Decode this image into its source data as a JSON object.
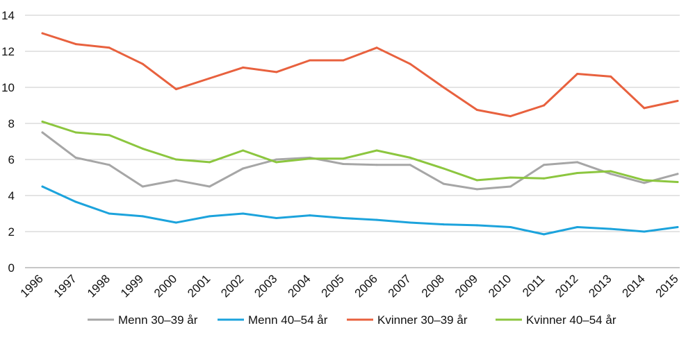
{
  "chart_data": {
    "type": "line",
    "title": "",
    "xlabel": "",
    "ylabel": "",
    "ylim": [
      0,
      14
    ],
    "yticks": [
      0,
      2,
      4,
      6,
      8,
      10,
      12,
      14
    ],
    "grid": true,
    "legend_position": "bottom",
    "categories": [
      "1996",
      "1997",
      "1998",
      "1999",
      "2000",
      "2001",
      "2002",
      "2003",
      "2004",
      "2005",
      "2006",
      "2007",
      "2008",
      "2009",
      "2010",
      "2011",
      "2012",
      "2013",
      "2014",
      "2015"
    ],
    "series": [
      {
        "name": "Menn 30–39 år",
        "color": "#a6a6a6",
        "values": [
          7.5,
          6.1,
          5.7,
          4.5,
          4.85,
          4.5,
          5.5,
          6.0,
          6.1,
          5.75,
          5.7,
          5.7,
          4.65,
          4.35,
          4.5,
          5.7,
          5.85,
          5.2,
          4.7,
          5.2
        ]
      },
      {
        "name": "Menn 40–54 år",
        "color": "#1ca3dc",
        "values": [
          4.5,
          3.65,
          3.0,
          2.85,
          2.5,
          2.85,
          3.0,
          2.75,
          2.9,
          2.75,
          2.65,
          2.5,
          2.4,
          2.35,
          2.25,
          1.85,
          2.25,
          2.15,
          2.0,
          2.25
        ]
      },
      {
        "name": "Kvinner 30–39 år",
        "color": "#e8613e",
        "values": [
          13.0,
          12.4,
          12.2,
          11.3,
          9.9,
          10.5,
          11.1,
          10.85,
          11.5,
          11.5,
          12.2,
          11.3,
          10.0,
          8.75,
          8.4,
          9.0,
          10.75,
          10.6,
          8.85,
          9.25
        ]
      },
      {
        "name": "Kvinner 40–54 år",
        "color": "#8cc63f",
        "values": [
          8.1,
          7.5,
          7.35,
          6.6,
          6.0,
          5.85,
          6.5,
          5.85,
          6.05,
          6.05,
          6.5,
          6.1,
          5.5,
          4.85,
          5.0,
          4.95,
          5.25,
          5.35,
          4.85,
          4.75
        ]
      }
    ]
  }
}
